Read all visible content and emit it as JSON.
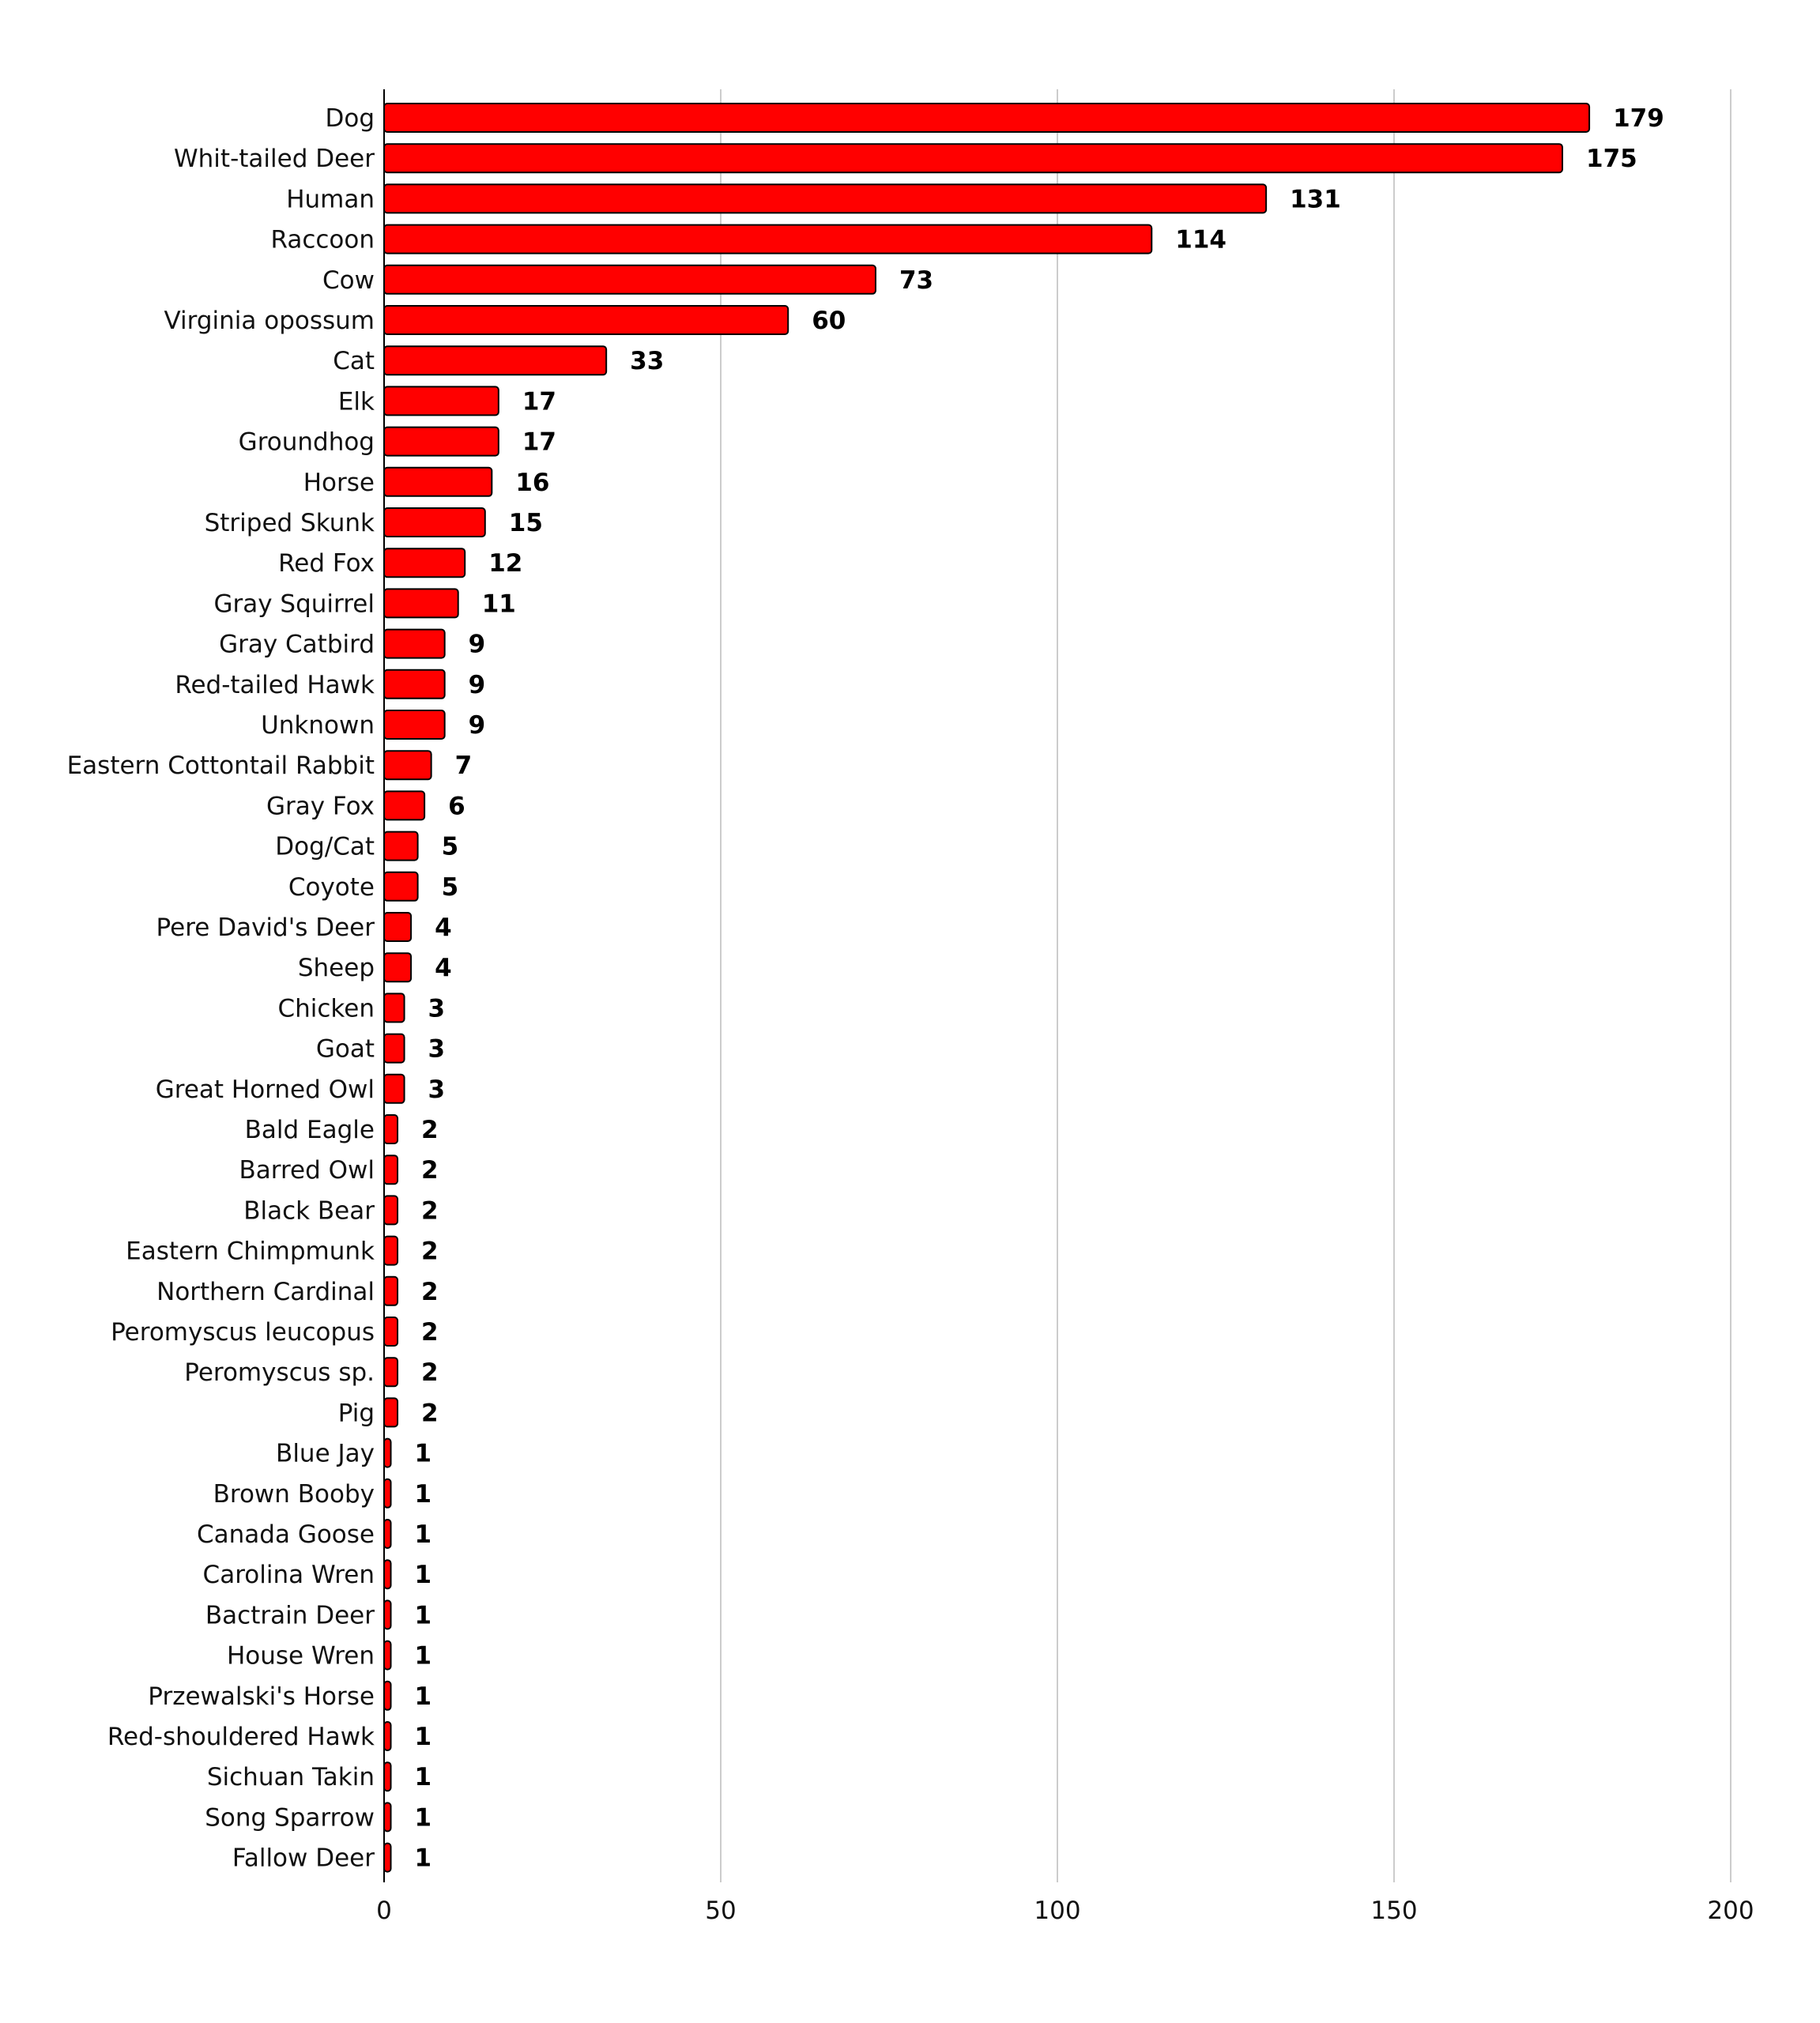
{
  "chart_data": {
    "type": "bar",
    "orientation": "horizontal",
    "title": "",
    "xlabel": "",
    "ylabel": "",
    "xlim": [
      0,
      200
    ],
    "x_ticks": [
      0,
      50,
      100,
      150,
      200
    ],
    "grid": "vertical",
    "legend": "none",
    "bar_color": "#ff0000",
    "bar_outline": "#000000",
    "categories": [
      "Dog",
      "Whit-tailed Deer",
      "Human",
      "Raccoon",
      "Cow",
      "Virginia opossum",
      "Cat",
      "Elk",
      "Groundhog",
      "Horse",
      "Striped Skunk",
      "Red Fox",
      "Gray Squirrel",
      "Gray Catbird",
      "Red-tailed Hawk",
      "Unknown",
      "Eastern Cottontail Rabbit",
      "Gray Fox",
      "Dog/Cat",
      "Coyote",
      "Pere David's Deer",
      "Sheep",
      "Chicken",
      "Goat",
      "Great Horned Owl",
      "Bald Eagle",
      "Barred Owl",
      "Black Bear",
      "Eastern Chimpmunk",
      "Northern Cardinal",
      "Peromyscus leucopus",
      "Peromyscus sp.",
      "Pig",
      "Blue Jay",
      "Brown Booby",
      "Canada Goose",
      "Carolina Wren",
      "Bactrain Deer",
      "House Wren",
      "Przewalski's Horse",
      "Red-shouldered Hawk",
      "Sichuan Takin",
      "Song Sparrow",
      "Fallow Deer"
    ],
    "values": [
      179,
      175,
      131,
      114,
      73,
      60,
      33,
      17,
      17,
      16,
      15,
      12,
      11,
      9,
      9,
      9,
      7,
      6,
      5,
      5,
      4,
      4,
      3,
      3,
      3,
      2,
      2,
      2,
      2,
      2,
      2,
      2,
      2,
      1,
      1,
      1,
      1,
      1,
      1,
      1,
      1,
      1,
      1,
      1
    ]
  }
}
